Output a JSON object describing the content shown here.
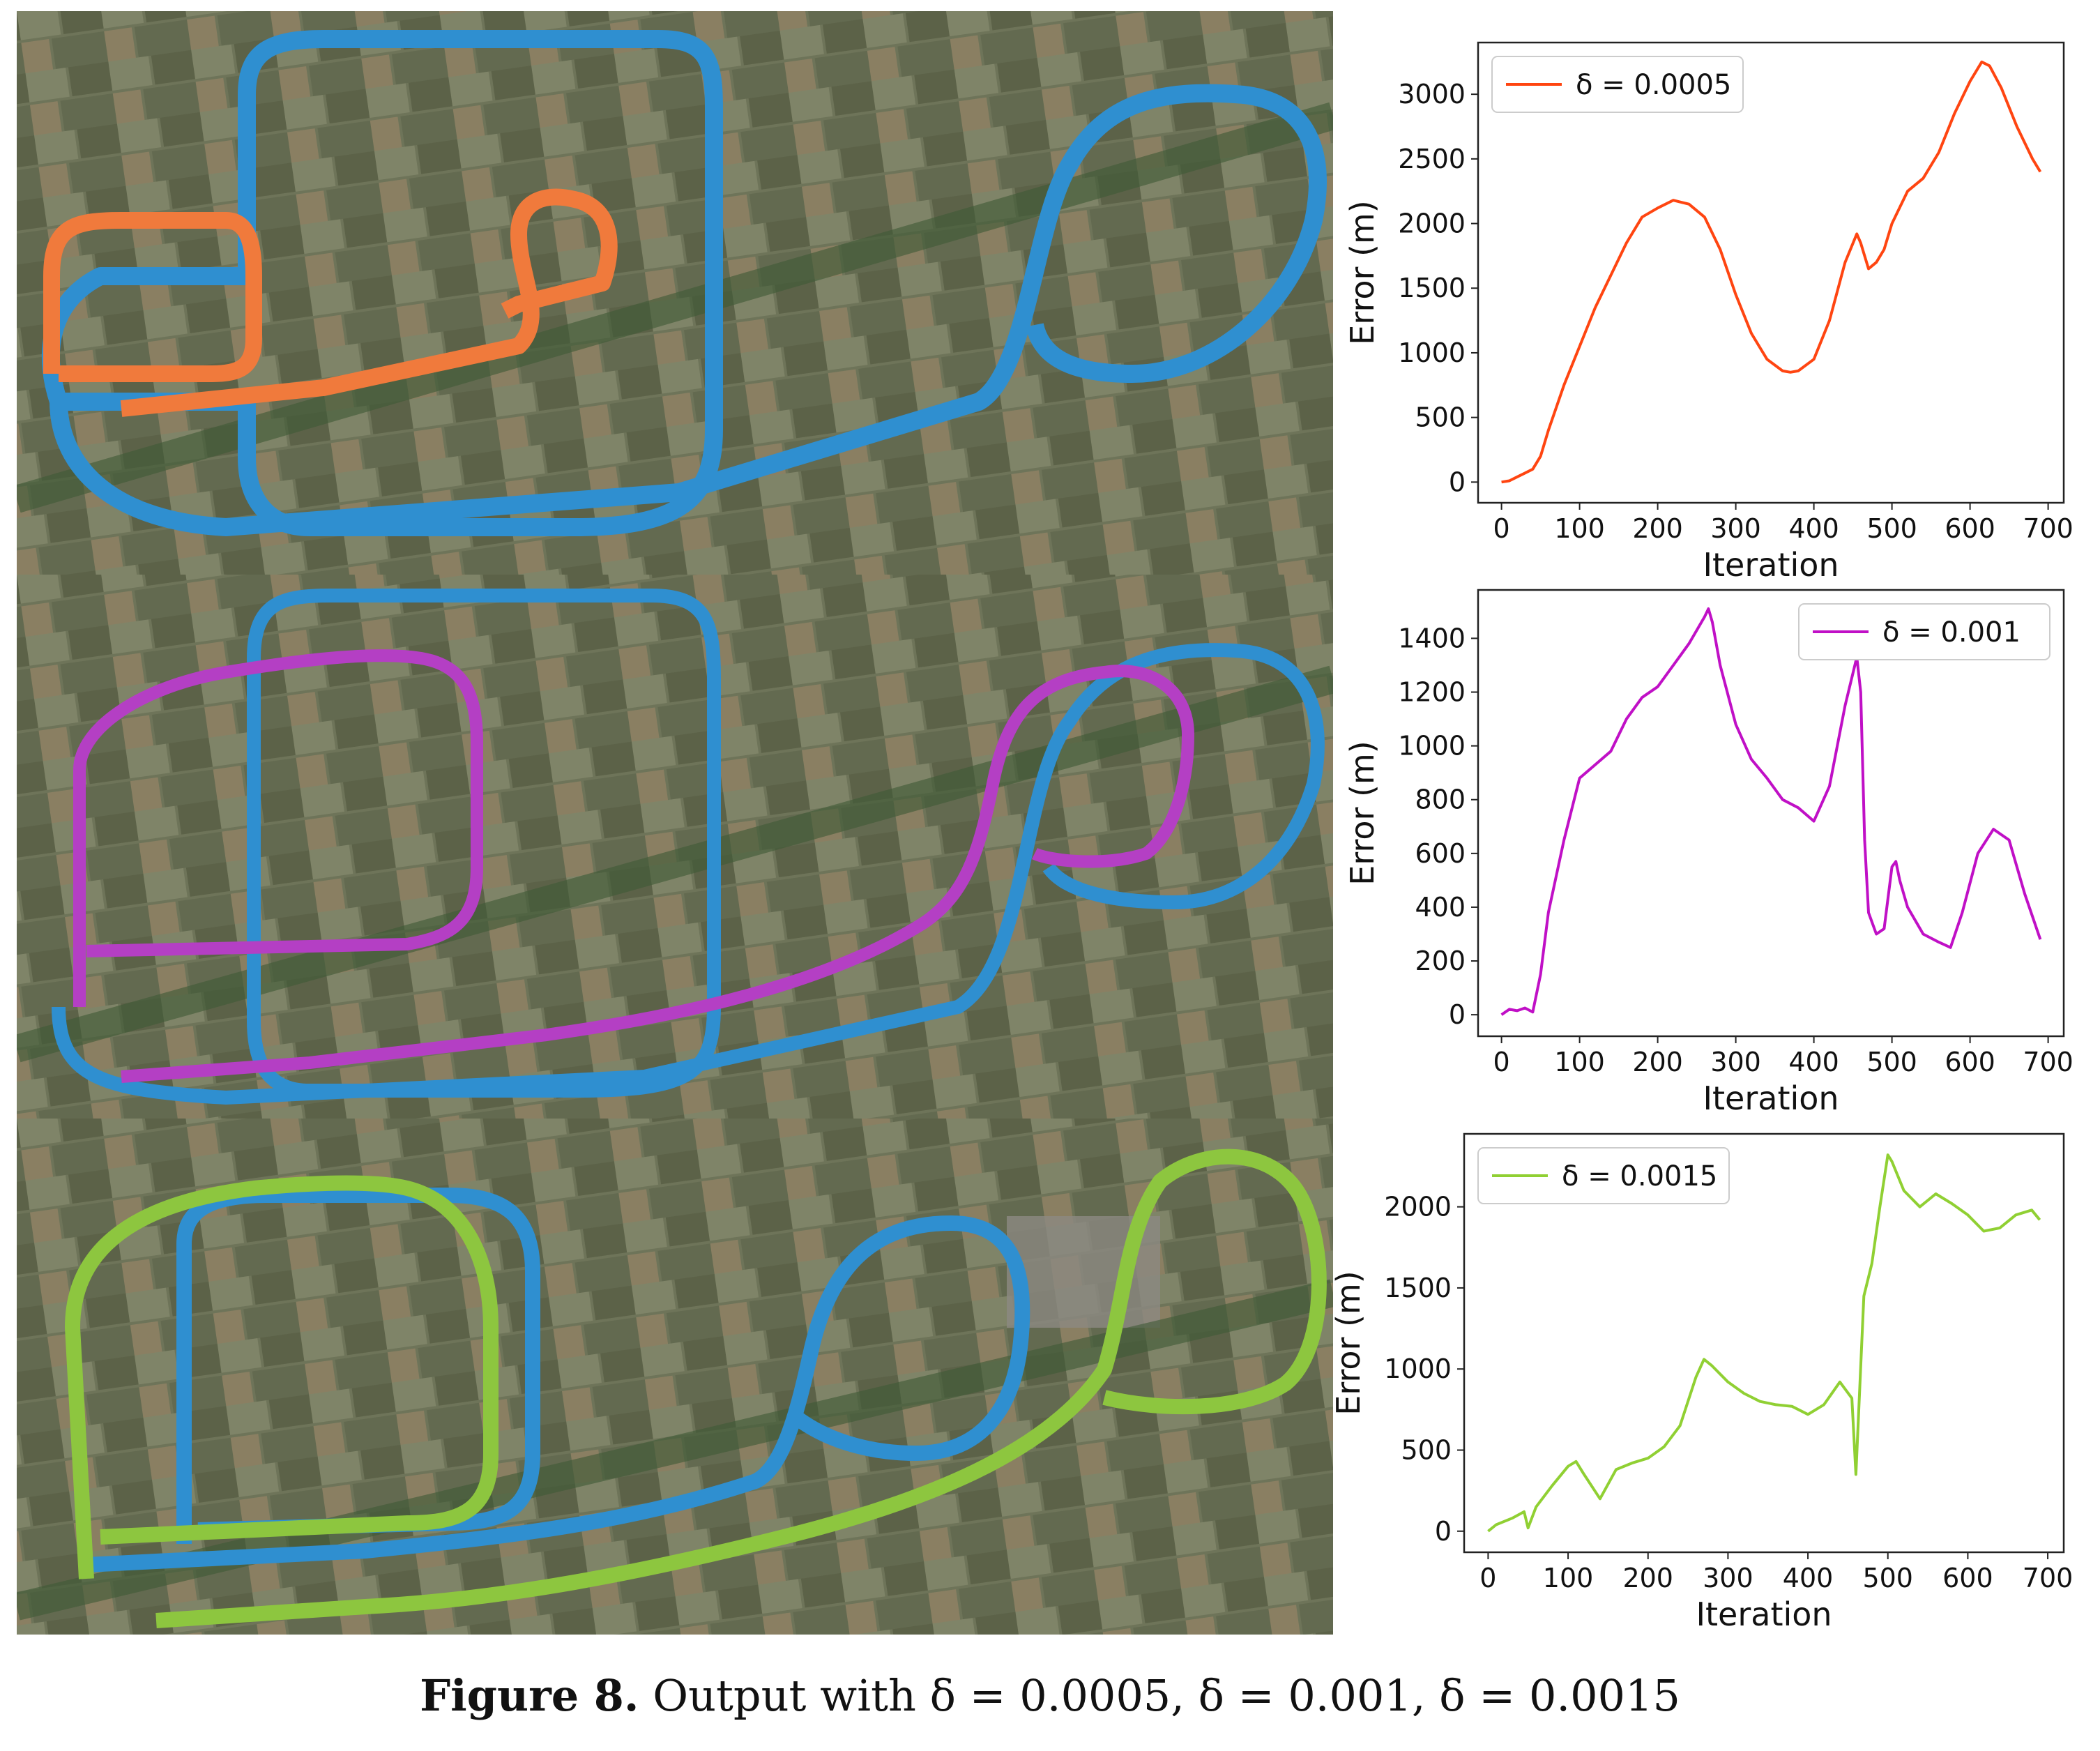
{
  "figure": {
    "caption_label": "Figure 8.",
    "caption_text": "Output with δ = 0.0005, δ = 0.001, δ = 0.0015"
  },
  "maps": [
    {
      "route_colors": [
        "#2f8fd0",
        "#f07a3c"
      ],
      "label": ""
    },
    {
      "route_colors": [
        "#2f8fd0",
        "#b43fc4"
      ],
      "label": ""
    },
    {
      "route_colors": [
        "#2f8fd0",
        "#8dc63f"
      ],
      "label": ""
    }
  ],
  "chart_data": [
    {
      "type": "line",
      "color": "#ff4511",
      "legend": "δ = 0.0005",
      "legend_position": "top-left",
      "xlabel": "Iteration",
      "ylabel": "Error (m)",
      "xlim": [
        -30,
        720
      ],
      "ylim": [
        -160,
        3400
      ],
      "xticks": [
        0,
        100,
        200,
        300,
        400,
        500,
        600,
        700
      ],
      "yticks": [
        0,
        500,
        1000,
        1500,
        2000,
        2500,
        3000
      ],
      "x": [
        0,
        10,
        20,
        30,
        40,
        50,
        60,
        80,
        100,
        120,
        140,
        160,
        180,
        200,
        220,
        240,
        260,
        280,
        300,
        320,
        340,
        360,
        370,
        380,
        400,
        420,
        440,
        455,
        460,
        465,
        470,
        480,
        490,
        500,
        520,
        540,
        560,
        580,
        600,
        615,
        625,
        640,
        660,
        680,
        690
      ],
      "y": [
        0,
        10,
        40,
        70,
        100,
        200,
        400,
        750,
        1050,
        1350,
        1600,
        1850,
        2050,
        2120,
        2180,
        2150,
        2050,
        1800,
        1450,
        1150,
        950,
        860,
        850,
        860,
        950,
        1250,
        1700,
        1920,
        1850,
        1750,
        1650,
        1700,
        1800,
        2000,
        2250,
        2350,
        2550,
        2850,
        3100,
        3250,
        3220,
        3050,
        2750,
        2500,
        2400
      ]
    },
    {
      "type": "line",
      "color": "#c010c6",
      "legend": "δ = 0.001",
      "legend_position": "top-right",
      "xlabel": "Iteration",
      "ylabel": "Error (m)",
      "xlim": [
        -30,
        720
      ],
      "ylim": [
        -80,
        1580
      ],
      "xticks": [
        0,
        100,
        200,
        300,
        400,
        500,
        600,
        700
      ],
      "yticks": [
        0,
        200,
        400,
        600,
        800,
        1000,
        1200,
        1400
      ],
      "x": [
        0,
        10,
        20,
        30,
        40,
        50,
        60,
        80,
        100,
        120,
        140,
        160,
        180,
        200,
        220,
        240,
        260,
        265,
        270,
        280,
        300,
        320,
        340,
        360,
        380,
        400,
        420,
        440,
        455,
        460,
        465,
        470,
        480,
        490,
        500,
        505,
        510,
        520,
        540,
        560,
        575,
        590,
        610,
        630,
        650,
        670,
        690
      ],
      "y": [
        0,
        20,
        15,
        25,
        10,
        150,
        380,
        650,
        880,
        930,
        980,
        1100,
        1180,
        1220,
        1300,
        1380,
        1480,
        1510,
        1460,
        1300,
        1080,
        950,
        880,
        800,
        770,
        720,
        850,
        1150,
        1330,
        1200,
        650,
        380,
        300,
        320,
        550,
        570,
        500,
        400,
        300,
        270,
        250,
        380,
        600,
        690,
        650,
        450,
        280
      ]
    },
    {
      "type": "line",
      "color": "#90d033",
      "legend": "δ = 0.0015",
      "legend_position": "top-left",
      "xlabel": "Iteration",
      "ylabel": "Error (m)",
      "xlim": [
        -30,
        720
      ],
      "ylim": [
        -130,
        2450
      ],
      "xticks": [
        0,
        100,
        200,
        300,
        400,
        500,
        600,
        700
      ],
      "yticks": [
        0,
        500,
        1000,
        1500,
        2000
      ],
      "x": [
        0,
        10,
        30,
        45,
        50,
        60,
        80,
        100,
        110,
        120,
        140,
        160,
        180,
        200,
        220,
        240,
        260,
        270,
        280,
        300,
        320,
        340,
        360,
        380,
        400,
        420,
        440,
        455,
        460,
        465,
        470,
        480,
        490,
        500,
        505,
        520,
        540,
        560,
        580,
        600,
        620,
        640,
        660,
        680,
        690
      ],
      "y": [
        0,
        40,
        80,
        120,
        20,
        150,
        280,
        400,
        430,
        350,
        200,
        380,
        420,
        450,
        520,
        650,
        950,
        1060,
        1020,
        920,
        850,
        800,
        780,
        770,
        720,
        780,
        920,
        820,
        350,
        900,
        1450,
        1650,
        2000,
        2320,
        2280,
        2100,
        2000,
        2080,
        2020,
        1950,
        1850,
        1870,
        1950,
        1980,
        1920
      ]
    }
  ]
}
